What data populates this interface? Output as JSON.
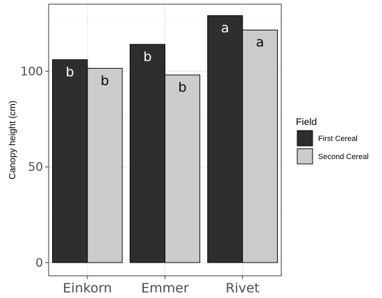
{
  "chart_data": {
    "type": "bar",
    "ylabel": "Canopy height (cm)",
    "xlabel": "",
    "title": "",
    "categories": [
      "Einkorn",
      "Emmer",
      "Rivet"
    ],
    "ylim": [
      0,
      135
    ],
    "yticks": [
      0,
      50,
      100
    ],
    "grid": true,
    "legend": {
      "title": "Field",
      "position": "right"
    },
    "series": [
      {
        "name": "First Cereal",
        "color": "#2e2e2e",
        "label_color": "#ffffff",
        "values": [
          106,
          114,
          129
        ],
        "labels": [
          "b",
          "b",
          "a"
        ]
      },
      {
        "name": "Second Cereal",
        "color": "#cccccc",
        "label_color": "#000000",
        "values": [
          101.5,
          98,
          121.5
        ],
        "labels": [
          "b",
          "b",
          "a"
        ]
      }
    ]
  }
}
